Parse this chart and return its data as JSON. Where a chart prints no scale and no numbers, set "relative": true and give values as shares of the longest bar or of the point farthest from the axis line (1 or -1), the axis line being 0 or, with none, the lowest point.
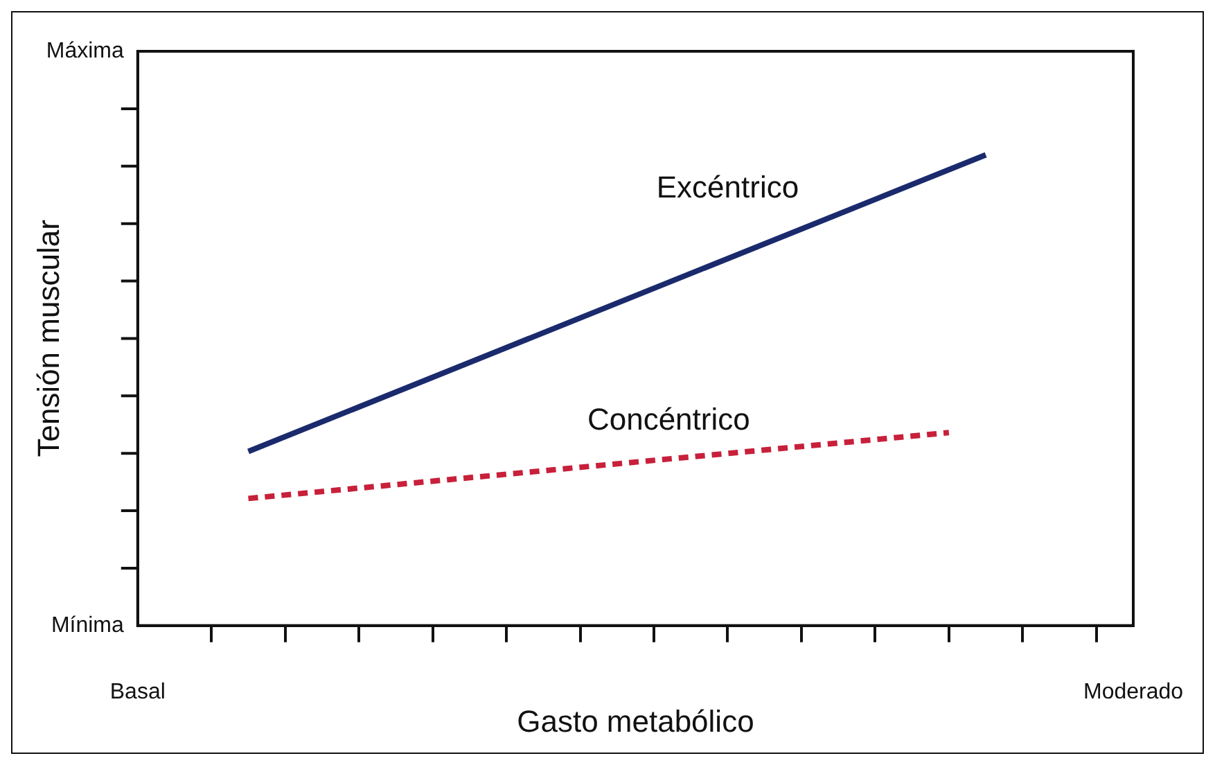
{
  "chart_data": {
    "type": "line",
    "relative": true,
    "xlabel": "Gasto metabólico",
    "ylabel": "Tensión muscular",
    "annotations": [
      "Máxima",
      "Mínima",
      "Basal",
      "Moderado"
    ],
    "categories": [
      null,
      null,
      null,
      null,
      null,
      null,
      null,
      null,
      null,
      null,
      null,
      null,
      null,
      null,
      null,
      null,
      null,
      null,
      null,
      null,
      null,
      null,
      null,
      null,
      null,
      null,
      null,
      null
    ],
    "grid": false,
    "legend": false,
    "marker": "none",
    "series": [
      {
        "name": "Excéntrico",
        "color": "#1a2a6c",
        "line_style": "solid",
        "values": [
          null,
          null,
          null,
          0.37,
          null,
          null,
          null,
          null,
          null,
          null,
          null,
          null,
          null,
          null,
          null,
          null,
          null,
          null,
          null,
          null,
          null,
          null,
          null,
          1,
          null,
          null,
          null,
          null
        ]
      },
      {
        "name": "Concéntrico",
        "color": "#c8203a",
        "line_style": "dashed",
        "values": [
          null,
          null,
          null,
          0.27,
          null,
          null,
          null,
          null,
          null,
          null,
          null,
          null,
          null,
          null,
          null,
          null,
          null,
          null,
          null,
          null,
          null,
          null,
          0.41,
          null,
          null,
          null,
          null,
          null
        ]
      }
    ]
  }
}
